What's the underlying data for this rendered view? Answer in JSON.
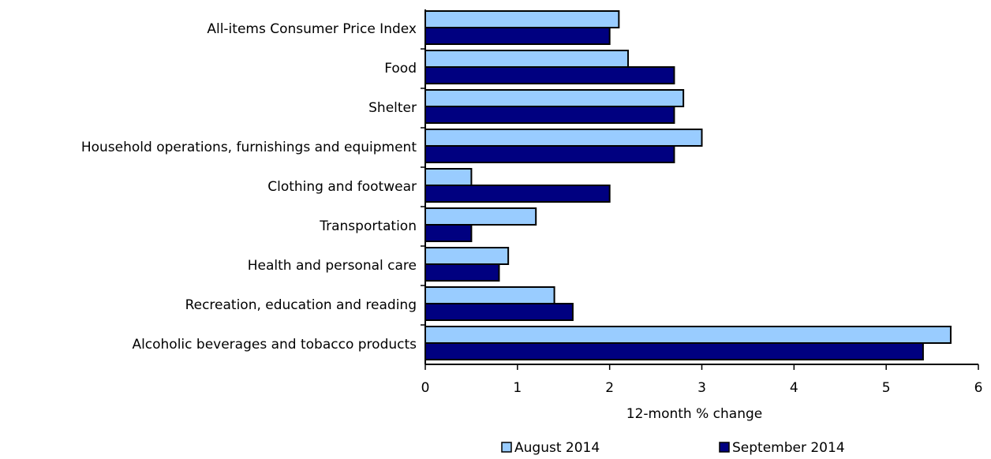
{
  "chart_data": {
    "type": "hbar",
    "categories": [
      "All-items Consumer Price Index",
      "Food",
      "Shelter",
      "Household operations, furnishings and equipment",
      "Clothing and footwear",
      "Transportation",
      "Health and personal care",
      "Recreation, education and reading",
      "Alcoholic beverages and tobacco products"
    ],
    "series": [
      {
        "name": "August 2014",
        "color": "#99ccff",
        "values": [
          2.1,
          2.2,
          2.8,
          3.0,
          0.5,
          1.2,
          0.9,
          1.4,
          5.7
        ]
      },
      {
        "name": "September 2014",
        "color": "#000080",
        "values": [
          2.0,
          2.7,
          2.7,
          2.7,
          2.0,
          0.5,
          0.8,
          1.6,
          5.4
        ]
      }
    ],
    "xlabel": "12-month % change",
    "xlim": [
      0,
      6
    ],
    "xticks": [
      0,
      1,
      2,
      3,
      4,
      5,
      6
    ],
    "legend": "bottom"
  }
}
